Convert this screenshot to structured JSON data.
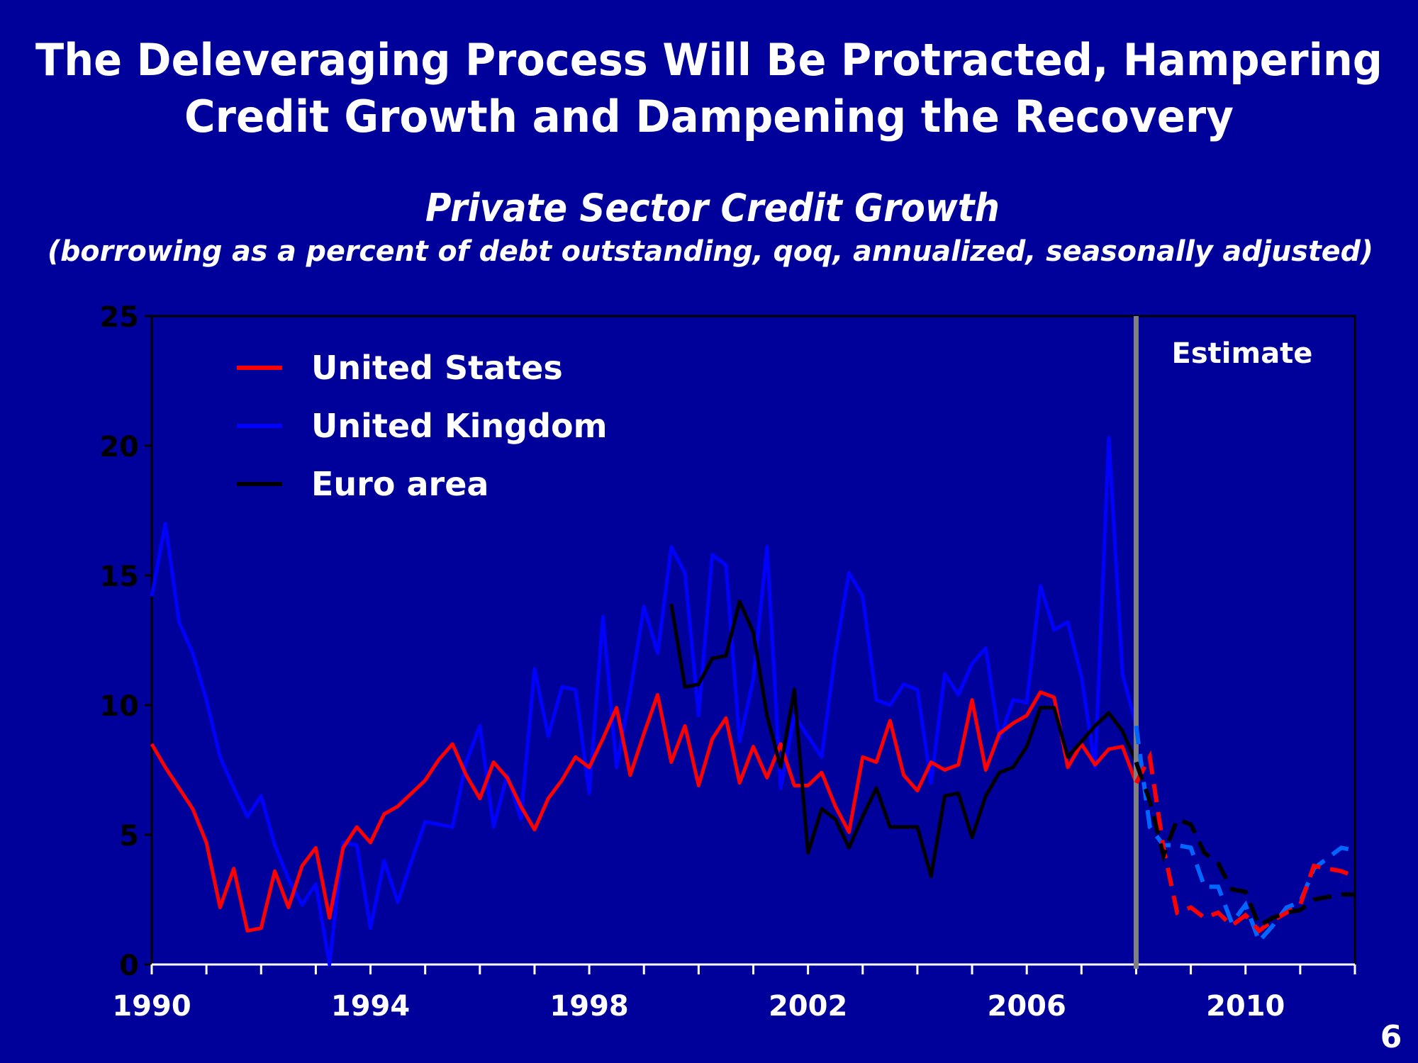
{
  "slide": {
    "title_line1": "The Deleveraging Process Will Be Protracted, Hampering",
    "title_line2": "Credit Growth and Dampening the Recovery",
    "page_number": "6",
    "background_color": "#00009A"
  },
  "chart_data": {
    "type": "line",
    "title": "Private Sector Credit Growth",
    "subtitle": "(borrowing as a percent of debt outstanding, qoq, annualized, seasonally adjusted)",
    "xlabel": "",
    "ylabel": "",
    "xlim": [
      1990,
      2012
    ],
    "ylim": [
      0,
      25
    ],
    "yticks": [
      "0",
      "5",
      "10",
      "15",
      "20",
      "25"
    ],
    "xticks": [
      "1990",
      "1994",
      "1998",
      "2002",
      "2006",
      "2010"
    ],
    "grid": false,
    "legend_position": "top-left",
    "estimate_start": 2008,
    "estimate_label": "Estimate",
    "x_step": "quarterly",
    "series": [
      {
        "name": "United States",
        "color": "#FF0000",
        "estimate_color": "#FF0000",
        "start": 1990,
        "values": [
          8.5,
          7.6,
          6.8,
          6.0,
          4.7,
          2.2,
          3.7,
          1.3,
          1.4,
          3.6,
          2.2,
          3.8,
          4.5,
          1.8,
          4.5,
          5.3,
          4.7,
          5.8,
          6.1,
          6.6,
          7.1,
          7.9,
          8.5,
          7.3,
          6.4,
          7.8,
          7.2,
          6.1,
          5.2,
          6.4,
          7.1,
          8.0,
          7.6,
          8.7,
          9.9,
          7.3,
          8.9,
          10.4,
          7.8,
          9.2,
          6.9,
          8.7,
          9.5,
          7.0,
          8.4,
          7.2,
          8.5,
          6.9,
          6.9,
          7.4,
          6.1,
          5.1,
          8.0,
          7.8,
          9.4,
          7.3,
          6.7,
          7.8,
          7.5,
          7.7,
          10.2,
          7.5,
          8.9,
          9.3,
          9.6,
          10.5,
          10.3,
          7.6,
          8.5,
          7.7,
          8.3,
          8.4,
          7.0
        ],
        "estimate_start": 2008.25,
        "estimate": [
          8.0,
          4.5,
          2.0,
          2.2,
          1.8,
          2.0,
          1.5,
          1.9,
          1.3,
          1.7,
          2.0,
          2.3,
          3.8,
          3.7,
          3.6,
          3.4
        ]
      },
      {
        "name": "United Kingdom",
        "color": "#0000FF",
        "estimate_color": "#0066FF",
        "start": 1990,
        "values": [
          14.2,
          17.0,
          13.2,
          12.0,
          10.2,
          8.0,
          6.8,
          5.7,
          6.5,
          4.6,
          3.3,
          2.3,
          3.1,
          0.0,
          4.7,
          4.6,
          1.4,
          4.0,
          2.4,
          4.0,
          5.5,
          5.4,
          5.3,
          7.8,
          9.2,
          5.3,
          7.3,
          5.6,
          11.4,
          8.8,
          10.7,
          10.6,
          6.6,
          13.4,
          7.6,
          10.5,
          13.8,
          12.0,
          16.1,
          15.1,
          9.6,
          15.8,
          15.4,
          8.6,
          11.0,
          16.1,
          6.8,
          9.6,
          8.8,
          8.0,
          12.0,
          15.1,
          14.2,
          10.2,
          10.0,
          10.8,
          10.6,
          7.0,
          11.2,
          10.4,
          11.6,
          12.2,
          8.7,
          10.2,
          10.1,
          14.6,
          12.9,
          13.2,
          11.1,
          7.6,
          20.3,
          11.2,
          9.2
        ],
        "estimate_start": 2008.25,
        "estimate": [
          5.3,
          4.6,
          4.6,
          4.5,
          3.0,
          3.0,
          1.6,
          2.3,
          0.9,
          1.5,
          2.2,
          2.4,
          3.7,
          4.1,
          4.5,
          4.4
        ]
      },
      {
        "name": "Euro area",
        "color": "#000000",
        "estimate_color": "#000000",
        "start": 1999.5,
        "values": [
          13.9,
          10.7,
          10.8,
          11.8,
          11.9,
          14.0,
          12.8,
          9.6,
          7.6,
          10.6,
          4.3,
          6.0,
          5.6,
          4.5,
          5.7,
          6.8,
          5.3,
          5.3,
          5.3,
          3.4,
          6.5,
          6.6,
          4.9,
          6.5,
          7.4,
          7.6,
          8.4,
          9.9,
          9.9,
          8.0,
          8.6,
          9.2,
          9.7,
          9.0,
          7.8
        ],
        "estimate_start": 2008.25,
        "estimate": [
          6.3,
          4.2,
          5.6,
          5.4,
          4.3,
          3.9,
          2.9,
          2.8,
          1.5,
          1.8,
          2.0,
          2.1,
          2.5,
          2.6,
          2.7,
          2.7
        ]
      }
    ]
  }
}
